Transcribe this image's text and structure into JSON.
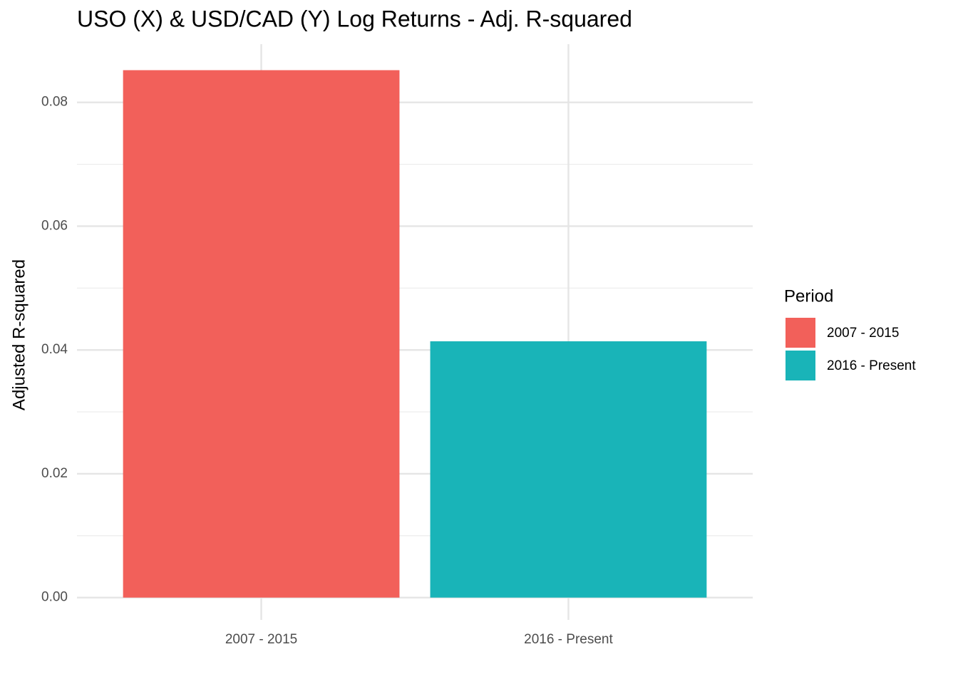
{
  "chart_data": {
    "type": "bar",
    "title": "USO (X) & USD/CAD (Y) Log Returns - Adj. R-squared",
    "y_label": "Adjusted R-squared",
    "categories": [
      "2007 - 2015",
      "2016 - Present"
    ],
    "values": [
      0.0852,
      0.0414
    ],
    "colors": [
      "#f2605a",
      "#19b4b8"
    ],
    "legend_title": "Period",
    "legend": "right",
    "ylim": [
      -0.0036,
      0.0894
    ],
    "yticks": [
      {
        "value": 0,
        "label": "0.00"
      },
      {
        "value": 0.02,
        "label": "0.02"
      },
      {
        "value": 0.04,
        "label": "0.04"
      },
      {
        "value": 0.06,
        "label": "0.06"
      },
      {
        "value": 0.08,
        "label": "0.08"
      }
    ],
    "grid": true,
    "minor_grid": true
  }
}
